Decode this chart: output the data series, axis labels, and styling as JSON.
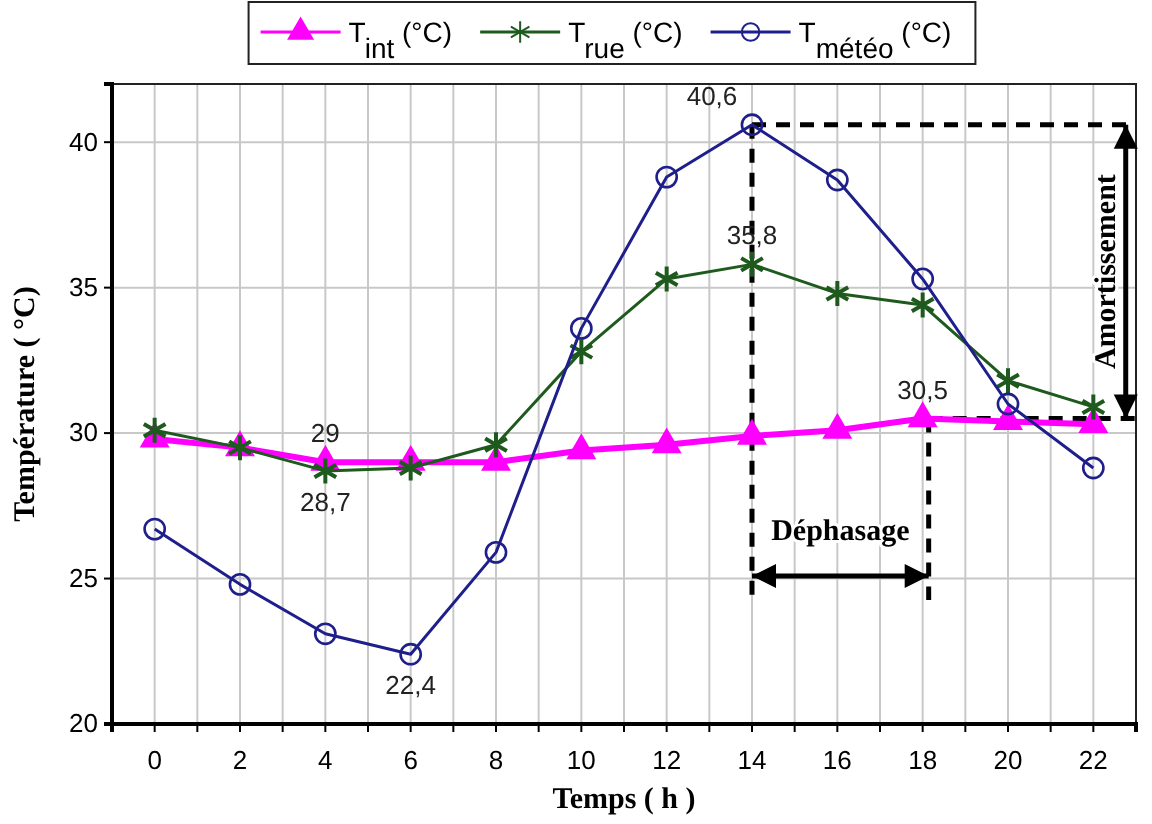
{
  "chart_data": {
    "type": "line",
    "xlabel": "Temps ( h )",
    "ylabel": "Température ( °C)",
    "x": [
      0,
      2,
      4,
      6,
      8,
      10,
      12,
      14,
      16,
      18,
      20,
      22
    ],
    "xlim": [
      -1,
      23
    ],
    "ylim": [
      20,
      42
    ],
    "xticks": [
      0,
      {
        "value": 1,
        "label": null
      },
      2,
      {
        "value": 3,
        "label": null
      },
      4,
      {
        "value": 5,
        "label": null
      },
      6,
      {
        "value": 7,
        "label": null
      },
      8,
      {
        "value": 9,
        "label": null
      },
      10,
      {
        "value": 11,
        "label": null
      },
      12,
      {
        "value": 13,
        "label": null
      },
      14,
      {
        "value": 15,
        "label": null
      },
      16,
      {
        "value": 17,
        "label": null
      },
      18,
      {
        "value": 19,
        "label": null
      },
      20,
      {
        "value": 21,
        "label": null
      },
      22
    ],
    "yticks": [
      20,
      25,
      30,
      35,
      40
    ],
    "grid": true,
    "legend": "top",
    "series": [
      {
        "name": "T$_{int}$ (°C)",
        "color": "#ff00ff",
        "marker": "triangle",
        "values": [
          29.8,
          29.5,
          29,
          29,
          29,
          29.4,
          29.6,
          29.9,
          30.1,
          30.5,
          30.4,
          30.3
        ],
        "value_labels": [
          null,
          null,
          "29",
          null,
          null,
          null,
          null,
          null,
          null,
          "30,5",
          null,
          null
        ]
      },
      {
        "name": "T$_{rue}$ (°C)",
        "color": "#1e5a1e",
        "marker": "cross",
        "values": [
          30.1,
          29.5,
          28.7,
          28.8,
          29.6,
          32.8,
          35.3,
          35.8,
          34.8,
          34.4,
          31.8,
          30.9
        ],
        "value_labels": [
          null,
          null,
          "28,7",
          null,
          null,
          null,
          null,
          "35,8",
          null,
          null,
          null,
          null
        ]
      },
      {
        "name": "T$_{météo}$ (°C)",
        "color": "#1f1f8c",
        "marker": "circle",
        "values": [
          26.7,
          24.8,
          23.1,
          22.4,
          25.9,
          33.6,
          38.8,
          40.6,
          38.7,
          35.3,
          31,
          28.8
        ],
        "value_labels": [
          null,
          null,
          null,
          "22,4",
          null,
          null,
          null,
          "40,6",
          null,
          null,
          null,
          null
        ]
      }
    ],
    "annotations": [
      "Déphasage",
      "Amortissement"
    ]
  }
}
